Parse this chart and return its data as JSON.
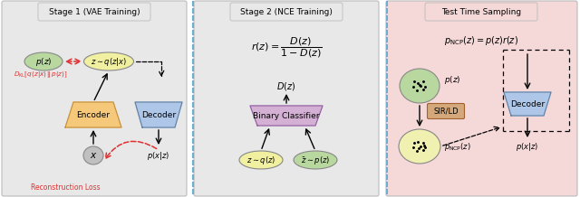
{
  "panel1_title": "Stage 1 (VAE Training)",
  "panel2_title": "Stage 2 (NCE Training)",
  "panel3_title": "Test Time Sampling",
  "panel1_bg": "#e8e8e8",
  "panel2_bg": "#e8e8e8",
  "panel3_bg": "#f5d8d8",
  "fig_bg": "#ffffff",
  "encoder_color": "#f5c87a",
  "decoder_color": "#aec6e8",
  "binary_classifier_color": "#d4b0d4",
  "pz_color": "#b8d8a0",
  "qzx_color": "#f0f0a0",
  "x_color": "#c0c0c0",
  "sir_color": "#d4a87a",
  "pncp_color": "#f0f0b0",
  "pz3_color": "#b8d8a0",
  "zq_color": "#f0f0a0",
  "zp_color": "#b8d8a0",
  "sep_color": "#6baed4",
  "panel_edge": "#bbbbbb",
  "arrow_color": "#222222",
  "red_color": "#e03030"
}
